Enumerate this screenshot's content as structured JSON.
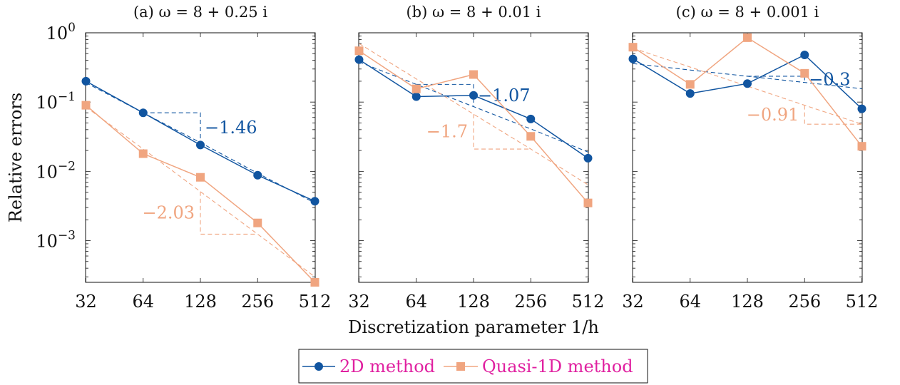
{
  "colors": {
    "series_2d": "#1155a0",
    "series_q1d": "#f0a580",
    "axis": "#111111",
    "legend_text": "#e020a0"
  },
  "chart_data": [
    {
      "type": "line",
      "title": "(a) ω = 8 + 0.25 i",
      "xlabel": "Discretization parameter 1/h",
      "ylabel": "Relative errors",
      "x_scale": "log2",
      "y_scale": "log10",
      "x": [
        32,
        64,
        128,
        256,
        512
      ],
      "xticks": [
        "32",
        "64",
        "128",
        "256",
        "512"
      ],
      "yticks": [
        "10^0",
        "10^-1",
        "10^-2",
        "10^-3"
      ],
      "ylim": [
        0.00025,
        1
      ],
      "series": [
        {
          "name": "2D method",
          "marker": "circle",
          "values": [
            0.2,
            0.07,
            0.024,
            0.0088,
            0.0037
          ]
        },
        {
          "name": "Quasi-1D method",
          "marker": "square",
          "values": [
            0.09,
            0.018,
            0.0082,
            0.0018,
            0.00025
          ]
        }
      ],
      "fits": [
        {
          "series": "2D method",
          "values": [
            0.19,
            0.07,
            0.026,
            0.0094,
            0.0035
          ]
        },
        {
          "series": "Quasi-1D method",
          "values": [
            0.085,
            0.021,
            0.0051,
            0.00124,
            0.0003
          ]
        }
      ],
      "slope_annotations": [
        {
          "series": "2D method",
          "text": "−1.46"
        },
        {
          "series": "Quasi-1D method",
          "text": "−2.03"
        }
      ]
    },
    {
      "type": "line",
      "title": "(b) ω = 8 + 0.01 i",
      "x_scale": "log2",
      "y_scale": "log10",
      "x": [
        32,
        64,
        128,
        256,
        512
      ],
      "xticks": [
        "32",
        "64",
        "128",
        "256",
        "512"
      ],
      "ylim": [
        0.00025,
        1
      ],
      "series": [
        {
          "name": "2D method",
          "marker": "circle",
          "values": [
            0.41,
            0.12,
            0.125,
            0.057,
            0.0155
          ]
        },
        {
          "name": "Quasi-1D method",
          "marker": "square",
          "values": [
            0.55,
            0.155,
            0.25,
            0.032,
            0.0035
          ]
        }
      ],
      "fits": [
        {
          "series": "2D method",
          "values": [
            0.38,
            0.18,
            0.086,
            0.041,
            0.019
          ]
        },
        {
          "series": "Quasi-1D method",
          "values": [
            0.7,
            0.216,
            0.067,
            0.021,
            0.0064
          ]
        }
      ],
      "slope_annotations": [
        {
          "series": "2D method",
          "text": "−1.07"
        },
        {
          "series": "Quasi-1D method",
          "text": "−1.7"
        }
      ]
    },
    {
      "type": "line",
      "title": "(c) ω = 8 + 0.001 i",
      "x_scale": "log2",
      "y_scale": "log10",
      "x": [
        32,
        64,
        128,
        256,
        512
      ],
      "xticks": [
        "32",
        "64",
        "128",
        "256",
        "512"
      ],
      "ylim": [
        0.00025,
        1
      ],
      "series": [
        {
          "name": "2D method",
          "marker": "circle",
          "values": [
            0.42,
            0.133,
            0.185,
            0.48,
            0.08
          ]
        },
        {
          "name": "Quasi-1D method",
          "marker": "square",
          "values": [
            0.62,
            0.18,
            0.85,
            0.26,
            0.023
          ]
        }
      ],
      "fits": [
        {
          "series": "2D method",
          "values": [
            0.36,
            0.29,
            0.236,
            0.192,
            0.156
          ]
        },
        {
          "series": "Quasi-1D method",
          "values": [
            0.6,
            0.32,
            0.17,
            0.09,
            0.048
          ]
        }
      ],
      "slope_annotations": [
        {
          "series": "2D method",
          "text": "−0.3"
        },
        {
          "series": "Quasi-1D method",
          "text": "−0.91"
        }
      ]
    }
  ],
  "legend": {
    "items": [
      "2D method",
      "Quasi-1D method"
    ]
  }
}
